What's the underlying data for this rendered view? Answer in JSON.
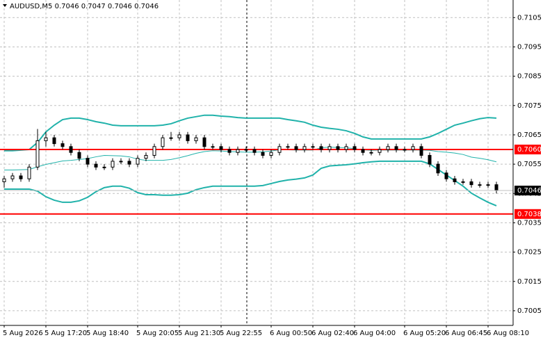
{
  "chart_data": {
    "type": "candlestick",
    "title": "AUDUSD,M5  0.7046 0.7047 0.7046 0.7046",
    "categories": [
      "5 Aug 2026",
      null,
      null,
      null,
      null,
      "5 Aug 17:20",
      null,
      null,
      null,
      null,
      "5 Aug 18:40",
      null,
      null,
      null,
      null,
      null,
      "5 Aug 20:05",
      null,
      null,
      null,
      null,
      "5 Aug 21:30",
      null,
      null,
      null,
      null,
      "5 Aug 22:55",
      null,
      null,
      null,
      null,
      null,
      "6 Aug 00:50",
      null,
      null,
      null,
      null,
      "6 Aug 02:40",
      null,
      null,
      null,
      null,
      "6 Aug 04:00",
      null,
      null,
      null,
      null,
      null,
      "6 Aug 05:20",
      null,
      null,
      null,
      null,
      "6 Aug 06:45",
      null,
      null,
      null,
      null,
      "6 Aug 08:10",
      null
    ],
    "open": [
      0.7049,
      0.705,
      0.7051,
      0.705,
      0.7054,
      0.7063,
      0.7064,
      0.7062,
      0.7061,
      0.7059,
      0.7057,
      0.7055,
      0.7054,
      0.7054,
      0.7056,
      0.7056,
      0.7055,
      0.7057,
      0.7058,
      0.7061,
      0.7064,
      0.7064,
      0.7065,
      0.7063,
      0.7064,
      0.7061,
      0.7061,
      0.706,
      0.7059,
      0.706,
      0.706,
      0.7059,
      0.7058,
      0.7059,
      0.7061,
      0.7061,
      0.706,
      0.7061,
      0.7061,
      0.706,
      0.7061,
      0.706,
      0.7061,
      0.706,
      0.7059,
      0.7059,
      0.706,
      0.7061,
      0.706,
      0.706,
      0.7061,
      0.7058,
      0.7055,
      0.7052,
      0.705,
      0.7049,
      0.7049,
      0.7048,
      0.7048,
      0.7048
    ],
    "high": [
      0.7051,
      0.7052,
      0.7052,
      0.7055,
      0.7067,
      0.7066,
      0.7065,
      0.7063,
      0.7062,
      0.706,
      0.7058,
      0.7056,
      0.7055,
      0.7057,
      0.7057,
      0.7057,
      0.7058,
      0.7059,
      0.7062,
      0.7065,
      0.7066,
      0.7066,
      0.7066,
      0.7065,
      0.7065,
      0.7062,
      0.7062,
      0.7061,
      0.7061,
      0.7061,
      0.7061,
      0.706,
      0.706,
      0.7062,
      0.7062,
      0.7062,
      0.7062,
      0.7062,
      0.7062,
      0.7062,
      0.7062,
      0.7062,
      0.7062,
      0.7061,
      0.706,
      0.7061,
      0.7062,
      0.7062,
      0.7061,
      0.7062,
      0.7062,
      0.7059,
      0.7056,
      0.7053,
      0.7051,
      0.705,
      0.705,
      0.7049,
      0.7049,
      0.7049
    ],
    "low": [
      0.7047,
      0.7049,
      0.7049,
      0.7049,
      0.7053,
      0.7061,
      0.7061,
      0.706,
      0.7058,
      0.7056,
      0.7054,
      0.7053,
      0.7053,
      0.7053,
      0.7055,
      0.7054,
      0.7054,
      0.7056,
      0.7057,
      0.706,
      0.7063,
      0.7063,
      0.7062,
      0.7062,
      0.706,
      0.706,
      0.7059,
      0.7058,
      0.7058,
      0.7059,
      0.7058,
      0.7057,
      0.7057,
      0.7058,
      0.706,
      0.7059,
      0.7059,
      0.706,
      0.7059,
      0.7059,
      0.7059,
      0.7059,
      0.7059,
      0.7058,
      0.7058,
      0.7058,
      0.7059,
      0.7059,
      0.7059,
      0.7059,
      0.7057,
      0.7054,
      0.7051,
      0.7049,
      0.7048,
      0.7048,
      0.7047,
      0.7047,
      0.7047,
      0.7045
    ],
    "close": [
      0.705,
      0.7051,
      0.705,
      0.7054,
      0.7063,
      0.7064,
      0.7062,
      0.7061,
      0.7059,
      0.7057,
      0.7055,
      0.7054,
      0.7054,
      0.7056,
      0.7056,
      0.7055,
      0.7057,
      0.7058,
      0.7061,
      0.7064,
      0.7064,
      0.7065,
      0.7063,
      0.7064,
      0.7061,
      0.7061,
      0.706,
      0.7059,
      0.706,
      0.706,
      0.7059,
      0.7058,
      0.7059,
      0.7061,
      0.7061,
      0.706,
      0.7061,
      0.7061,
      0.706,
      0.7061,
      0.706,
      0.7061,
      0.706,
      0.7059,
      0.7059,
      0.706,
      0.7061,
      0.706,
      0.706,
      0.7061,
      0.7058,
      0.7055,
      0.7052,
      0.705,
      0.7049,
      0.7049,
      0.7048,
      0.7048,
      0.7048,
      0.7046
    ],
    "candle_color": "#000000",
    "series": [
      {
        "color": "#20b2aa",
        "width": 2,
        "values": [
          0.70596,
          0.70596,
          0.70598,
          0.706,
          0.70624,
          0.7066,
          0.70683,
          0.70702,
          0.70707,
          0.70707,
          0.70702,
          0.70695,
          0.7069,
          0.70683,
          0.70681,
          0.70681,
          0.70681,
          0.70681,
          0.70681,
          0.70683,
          0.70688,
          0.70698,
          0.70707,
          0.70712,
          0.70717,
          0.70717,
          0.70714,
          0.70712,
          0.70709,
          0.70707,
          0.70707,
          0.70707,
          0.70707,
          0.70707,
          0.70702,
          0.70698,
          0.70693,
          0.70683,
          0.70676,
          0.70672,
          0.70669,
          0.70664,
          0.70655,
          0.70643,
          0.70636,
          0.70636,
          0.70636,
          0.70636,
          0.70636,
          0.70636,
          0.70636,
          0.70643,
          0.70655,
          0.70669,
          0.70683,
          0.7069,
          0.70698,
          0.70705,
          0.70709,
          0.70707
        ]
      },
      {
        "color": "#20b2aa",
        "width": 1,
        "values": [
          0.7053,
          0.7053,
          0.70531,
          0.70532,
          0.70541,
          0.70549,
          0.70555,
          0.70561,
          0.70563,
          0.70566,
          0.70569,
          0.70575,
          0.7058,
          0.70579,
          0.70578,
          0.70575,
          0.70567,
          0.70563,
          0.70563,
          0.70563,
          0.70566,
          0.70572,
          0.70579,
          0.70587,
          0.70593,
          0.70596,
          0.70595,
          0.70593,
          0.70592,
          0.70591,
          0.70591,
          0.70592,
          0.70595,
          0.70599,
          0.70599,
          0.70598,
          0.70598,
          0.70598,
          0.70606,
          0.70608,
          0.70607,
          0.70606,
          0.70603,
          0.70599,
          0.70597,
          0.70598,
          0.70598,
          0.70598,
          0.70598,
          0.70598,
          0.70598,
          0.70597,
          0.70593,
          0.70591,
          0.70588,
          0.70583,
          0.70574,
          0.7057,
          0.70565,
          0.70558
        ]
      },
      {
        "color": "#20b2aa",
        "width": 2,
        "values": [
          0.70465,
          0.70465,
          0.70465,
          0.70465,
          0.70458,
          0.70439,
          0.70427,
          0.7042,
          0.7042,
          0.70425,
          0.70437,
          0.70456,
          0.7047,
          0.70475,
          0.70475,
          0.70468,
          0.70453,
          0.70446,
          0.70446,
          0.70444,
          0.70444,
          0.70446,
          0.70451,
          0.70463,
          0.7047,
          0.70475,
          0.70475,
          0.70475,
          0.70475,
          0.70475,
          0.70475,
          0.70477,
          0.70484,
          0.70491,
          0.70496,
          0.70499,
          0.70503,
          0.70513,
          0.70536,
          0.70544,
          0.70546,
          0.70548,
          0.70551,
          0.70555,
          0.70558,
          0.7056,
          0.7056,
          0.7056,
          0.7056,
          0.7056,
          0.7056,
          0.70551,
          0.70532,
          0.70513,
          0.70494,
          0.70475,
          0.70451,
          0.70435,
          0.7042,
          0.70408
        ]
      }
    ],
    "levels": [
      {
        "color": "#ff0000",
        "value": {
          "value": 0.706,
          "label": "0.7060"
        }
      },
      {
        "color": "#ff0000",
        "value": {
          "value": 0.7038,
          "label": "0.7038"
        }
      }
    ],
    "current_price": 0.7046,
    "ylim": [
      0.7,
      0.7111
    ],
    "yticks": [
      0.7005,
      0.7015,
      0.7025,
      0.7035,
      0.7045,
      0.7055,
      0.7065,
      0.7075,
      0.7085,
      0.7095,
      0.7105
    ],
    "grid": true
  }
}
